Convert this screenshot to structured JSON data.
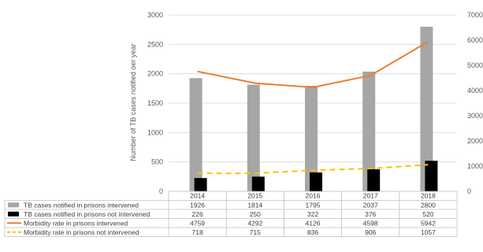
{
  "chart_data": {
    "type": "bar",
    "title": "",
    "xlabel": "",
    "ylabel": "Number of TB cases notified oer year",
    "y2label": "",
    "categories": [
      "2014",
      "2015",
      "2016",
      "2017",
      "2018"
    ],
    "ylim": [
      0,
      3000
    ],
    "y2lim": [
      0,
      7000
    ],
    "yticks": [
      "0",
      "500",
      "1000",
      "1500",
      "2000",
      "2500",
      "3000"
    ],
    "y2ticks": [
      "0",
      "1000",
      "2000",
      "3000",
      "4000",
      "5000",
      "6000",
      "7000"
    ],
    "grid": true,
    "legend": "table-below",
    "series": [
      {
        "name": "TB cases notified in prisons intervened",
        "kind": "bar",
        "axis": "left",
        "color": "#a6a6a6",
        "values": [
          1926,
          1814,
          1795,
          2037,
          2800
        ],
        "labels": [
          "1926",
          "1814",
          "1795",
          "2037",
          "2800"
        ]
      },
      {
        "name": "TB cases notified in prisons not intervened",
        "kind": "bar",
        "axis": "left",
        "color": "#000000",
        "values": [
          226,
          250,
          322,
          376,
          520
        ],
        "labels": [
          "226",
          "250",
          "322",
          "376",
          "520"
        ]
      },
      {
        "name": "Morbidity rate in prisons intervened",
        "kind": "line",
        "axis": "right",
        "color": "#ed7d31",
        "dash": "solid",
        "values": [
          4759,
          4292,
          4126,
          4598,
          5942
        ],
        "labels": [
          "4759",
          "4292",
          "4126",
          "4598",
          "5942"
        ]
      },
      {
        "name": "Morbidity rate in prisons not intervened",
        "kind": "line",
        "axis": "right",
        "color": "#ffc000",
        "dash": "dashed",
        "values": [
          718,
          715,
          836,
          906,
          1057
        ],
        "labels": [
          "718",
          "715",
          "836",
          "906",
          "1057"
        ]
      }
    ]
  }
}
